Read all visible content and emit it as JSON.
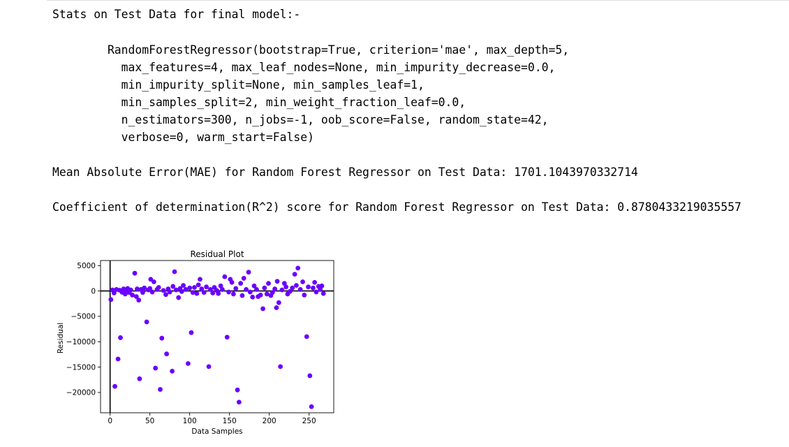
{
  "output": {
    "heading": "Stats on Test Data for final model:-",
    "model_repr": [
      "        RandomForestRegressor(bootstrap=True, criterion='mae', max_depth=5,",
      "          max_features=4, max_leaf_nodes=None, min_impurity_decrease=0.0,",
      "          min_impurity_split=None, min_samples_leaf=1,",
      "          min_samples_split=2, min_weight_fraction_leaf=0.0,",
      "          n_estimators=300, n_jobs=-1, oob_score=False, random_state=42,",
      "          verbose=0, warm_start=False)"
    ],
    "mae_line": "Mean Absolute Error(MAE) for Random Forest Regressor on Test Data: 1701.1043970332714",
    "r2_line": "Coefficient of determination(R^2) score for Random Forest Regressor on Test Data: 0.8780433219035557"
  },
  "chart_data": {
    "type": "scatter",
    "title": "Residual Plot",
    "xlabel": "Data Samples",
    "ylabel": "Residual",
    "xlim": [
      -12,
      281
    ],
    "ylim": [
      -24000,
      6000
    ],
    "x_ticks": [
      0,
      50,
      100,
      150,
      200,
      250
    ],
    "y_ticks": [
      5000,
      0,
      -5000,
      -10000,
      -15000,
      -20000
    ],
    "hline_y": 0,
    "vline_x": 0,
    "marker_color": "#6a00ff",
    "line_color": "#000000",
    "points": [
      [
        1,
        -1700
      ],
      [
        3,
        200
      ],
      [
        5,
        -400
      ],
      [
        6,
        -18800
      ],
      [
        8,
        300
      ],
      [
        10,
        -13400
      ],
      [
        12,
        150
      ],
      [
        13,
        -9200
      ],
      [
        15,
        -250
      ],
      [
        17,
        400
      ],
      [
        19,
        -600
      ],
      [
        20,
        100
      ],
      [
        22,
        500
      ],
      [
        24,
        -300
      ],
      [
        26,
        200
      ],
      [
        28,
        -800
      ],
      [
        31,
        3500
      ],
      [
        33,
        -1100
      ],
      [
        34,
        400
      ],
      [
        37,
        -17300
      ],
      [
        36,
        -1800
      ],
      [
        39,
        300
      ],
      [
        41,
        -300
      ],
      [
        43,
        600
      ],
      [
        46,
        -6100
      ],
      [
        48,
        200
      ],
      [
        50,
        500
      ],
      [
        51,
        2300
      ],
      [
        53,
        -200
      ],
      [
        55,
        1800
      ],
      [
        57,
        -15200
      ],
      [
        59,
        300
      ],
      [
        61,
        700
      ],
      [
        63,
        -19400
      ],
      [
        65,
        -9300
      ],
      [
        67,
        100
      ],
      [
        70,
        -700
      ],
      [
        71,
        -12400
      ],
      [
        73,
        400
      ],
      [
        75,
        -200
      ],
      [
        78,
        -15800
      ],
      [
        79,
        900
      ],
      [
        81,
        3800
      ],
      [
        83,
        200
      ],
      [
        86,
        -1300
      ],
      [
        88,
        500
      ],
      [
        90,
        -100
      ],
      [
        92,
        1100
      ],
      [
        95,
        300
      ],
      [
        98,
        -14300
      ],
      [
        100,
        600
      ],
      [
        102,
        -8200
      ],
      [
        104,
        -300
      ],
      [
        106,
        700
      ],
      [
        109,
        -500
      ],
      [
        111,
        1200
      ],
      [
        113,
        2300
      ],
      [
        115,
        400
      ],
      [
        118,
        -300
      ],
      [
        121,
        800
      ],
      [
        124,
        -14900
      ],
      [
        126,
        300
      ],
      [
        129,
        -400
      ],
      [
        131,
        700
      ],
      [
        134,
        100
      ],
      [
        136,
        -500
      ],
      [
        139,
        1000
      ],
      [
        141,
        300
      ],
      [
        144,
        2800
      ],
      [
        147,
        -9100
      ],
      [
        149,
        -200
      ],
      [
        151,
        2300
      ],
      [
        153,
        1700
      ],
      [
        155,
        -600
      ],
      [
        158,
        500
      ],
      [
        160,
        -19500
      ],
      [
        162,
        -21900
      ],
      [
        164,
        1500
      ],
      [
        166,
        -900
      ],
      [
        168,
        2500
      ],
      [
        171,
        300
      ],
      [
        174,
        3700
      ],
      [
        176,
        -200
      ],
      [
        179,
        -1200
      ],
      [
        181,
        1000
      ],
      [
        184,
        300
      ],
      [
        186,
        -1100
      ],
      [
        189,
        -800
      ],
      [
        192,
        -3500
      ],
      [
        194,
        600
      ],
      [
        197,
        -600
      ],
      [
        199,
        1500
      ],
      [
        202,
        -900
      ],
      [
        204,
        -300
      ],
      [
        207,
        400
      ],
      [
        209,
        -3300
      ],
      [
        210,
        1900
      ],
      [
        212,
        -2300
      ],
      [
        214,
        -14900
      ],
      [
        216,
        200
      ],
      [
        219,
        1500
      ],
      [
        221,
        800
      ],
      [
        223,
        -600
      ],
      [
        226,
        -100
      ],
      [
        229,
        600
      ],
      [
        232,
        3300
      ],
      [
        234,
        1100
      ],
      [
        236,
        4500
      ],
      [
        239,
        300
      ],
      [
        242,
        1800
      ],
      [
        244,
        -800
      ],
      [
        247,
        -9000
      ],
      [
        249,
        800
      ],
      [
        251,
        -16700
      ],
      [
        253,
        -22800
      ],
      [
        255,
        600
      ],
      [
        257,
        1700
      ],
      [
        259,
        -200
      ],
      [
        262,
        900
      ],
      [
        264,
        300
      ],
      [
        266,
        1000
      ],
      [
        268,
        -500
      ]
    ]
  }
}
